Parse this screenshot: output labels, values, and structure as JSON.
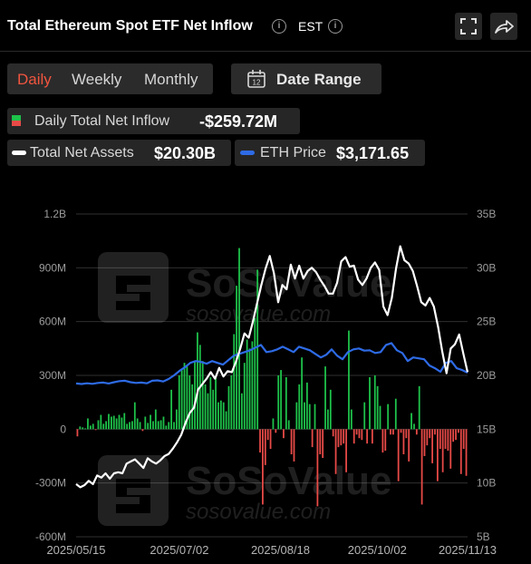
{
  "header": {
    "title": "Total Ethereum Spot ETF Net Inflow",
    "timezone": "EST"
  },
  "controls": {
    "tabs": [
      {
        "label": "Daily",
        "active": true
      },
      {
        "label": "Weekly",
        "active": false
      },
      {
        "label": "Monthly",
        "active": false
      }
    ],
    "date_range_label": "Date Range",
    "calendar_day": "12"
  },
  "stats": {
    "inflow_label": "Daily Total Net Inflow",
    "inflow_value": "-$259.72M",
    "assets_label": "Total Net Assets",
    "assets_value": "$20.30B",
    "eth_label": "ETH Price",
    "eth_value": "$3,171.65"
  },
  "watermark": {
    "brand": "SoSoValue",
    "url": "sosovalue.com"
  },
  "colors": {
    "positive": "#1ec24a",
    "negative": "#e84a47",
    "assets_line": "#ffffff",
    "eth_line": "#2e6be6",
    "active_tab": "#f0553f"
  },
  "chart_data": {
    "type": "bar",
    "left_axis": {
      "ticks": [
        "1.2B",
        "900M",
        "600M",
        "300M",
        "0",
        "-300M",
        "-600M"
      ],
      "ylim": [
        -600000000,
        1200000000
      ]
    },
    "right_axis": {
      "ticks": [
        "35B",
        "30B",
        "25B",
        "20B",
        "15B",
        "10B",
        "5B"
      ],
      "ylim": [
        5000000000,
        35000000000
      ]
    },
    "x_ticks": [
      "2025/05/15",
      "2025/07/02",
      "2025/08/18",
      "2025/10/02",
      "2025/11/13"
    ],
    "x_range": [
      "2025/05/15",
      "2025/11/13"
    ],
    "grid": "horizontal",
    "series": [
      {
        "name": "Daily Total Net Inflow",
        "type": "bar",
        "unit": "USD",
        "values": [
          -40,
          15,
          10,
          5,
          60,
          20,
          30,
          -5,
          50,
          80,
          30,
          45,
          85,
          70,
          75,
          60,
          80,
          65,
          90,
          30,
          40,
          45,
          150,
          60,
          40,
          -10,
          70,
          35,
          80,
          45,
          110,
          45,
          50,
          70,
          20,
          40,
          220,
          40,
          110,
          300,
          330,
          370,
          350,
          300,
          250,
          380,
          540,
          470,
          380,
          250,
          200,
          290,
          220,
          290,
          150,
          160,
          150,
          100,
          240,
          300,
          530,
          800,
          1010,
          200,
          370,
          500,
          450,
          490,
          620,
          890,
          -130,
          -420,
          -200,
          -60,
          -110,
          60,
          -20,
          300,
          330,
          -50,
          290,
          50,
          -140,
          -180,
          150,
          250,
          400,
          150,
          260,
          140,
          -100,
          140,
          -430,
          -140,
          -160,
          350,
          110,
          220,
          -40,
          -250,
          -100,
          -90,
          -80,
          -240,
          550,
          110,
          -80,
          -30,
          -50,
          -60,
          150,
          -80,
          290,
          -80,
          300,
          240,
          130,
          -130,
          -120,
          140,
          -30,
          -30,
          170,
          -290,
          -20,
          -140,
          -50,
          -180,
          90,
          30,
          -30,
          240,
          -420,
          -150,
          -90,
          -50,
          -190,
          -30,
          -290,
          -110,
          -240,
          -110,
          -120,
          -220,
          -70,
          -60,
          -20,
          -250,
          -110,
          -260
        ]
      },
      {
        "name": "Total Net Assets",
        "type": "line",
        "axis": "right",
        "unit": "USD",
        "values": [
          9.9,
          9.6,
          9.8,
          10.2,
          9.9,
          10.7,
          10.5,
          10.9,
          10.4,
          10.9,
          11.0,
          10.9,
          11.8,
          12.0,
          12.2,
          11.8,
          11.4,
          12.3,
          12.0,
          11.8,
          12.1,
          12.5,
          12.7,
          13.2,
          13.8,
          14.5,
          15.6,
          16.5,
          17.0,
          18.7,
          19.2,
          19.7,
          20.3,
          19.7,
          20.7,
          19.9,
          20.4,
          20.3,
          21.3,
          22.5,
          23.9,
          23.5,
          25.0,
          26.7,
          28.4,
          29.9,
          31.1,
          29.5,
          26.8,
          28.4,
          28.0,
          30.3,
          29.0,
          30.2,
          29.0,
          29.7,
          30.0,
          29.6,
          28.9,
          28.3,
          27.6,
          27.6,
          28.6,
          30.6,
          31.0,
          30.1,
          30.2,
          28.9,
          28.4,
          29.0,
          30.0,
          30.5,
          29.8,
          26.4,
          25.6,
          27.2,
          29.9,
          32.0,
          30.7,
          30.4,
          29.7,
          28.3,
          26.8,
          26.5,
          27.2,
          26.4,
          24.5,
          22.2,
          20.2,
          22.5,
          22.9,
          23.8,
          22.0,
          20.3
        ]
      },
      {
        "name": "ETH Price",
        "type": "line",
        "axis": "left",
        "unit": "USD",
        "values": [
          2550,
          2520,
          2560,
          2530,
          2580,
          2600,
          2550,
          2620,
          2680,
          2700,
          2620,
          2580,
          2600,
          2560,
          2700,
          2720,
          2660,
          2800,
          3000,
          3250,
          3450,
          3700,
          3800,
          3750,
          3650,
          3800,
          3700,
          3600,
          3850,
          4100,
          4200,
          4300,
          4400,
          4550,
          4700,
          4300,
          4350,
          4450,
          4600,
          4450,
          4300,
          4600,
          4500,
          4400,
          4200,
          4000,
          4150,
          4450,
          4100,
          3900,
          4300,
          4450,
          4500,
          4380,
          4400,
          4250,
          4300,
          4700,
          4800,
          4400,
          4250,
          3800,
          4000,
          3950,
          3900,
          3550,
          3400,
          3200,
          3700,
          3800,
          3400,
          3300,
          3150
        ]
      }
    ]
  }
}
